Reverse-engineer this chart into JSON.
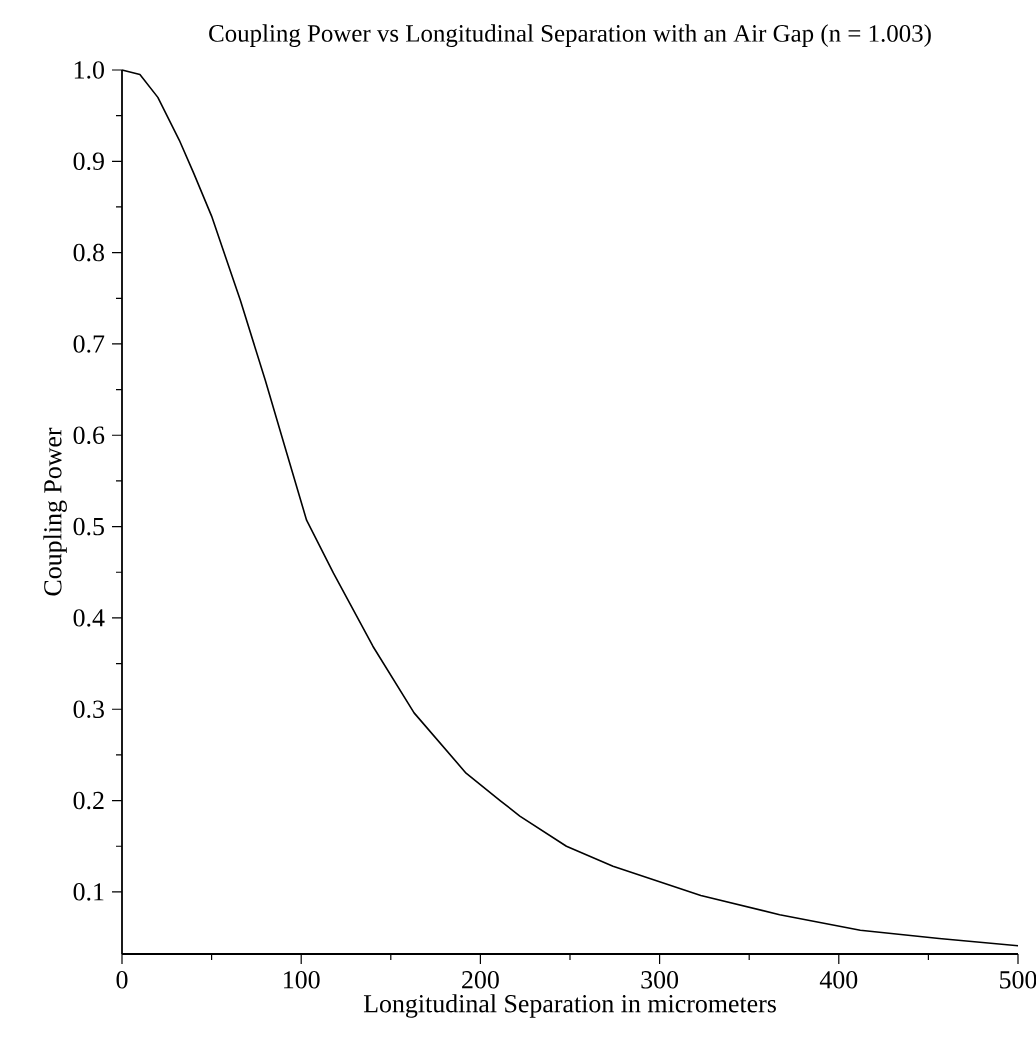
{
  "chart_data": {
    "type": "line",
    "title": "Coupling Power vs Longitudinal Separation with an Air Gap (n = 1.003)",
    "xlabel": "Longitudinal Separation in micrometers",
    "ylabel": "Coupling Power",
    "x": [
      0,
      10,
      20,
      32,
      40,
      50,
      66,
      80,
      92,
      103,
      118,
      140,
      163,
      192,
      211,
      222,
      248,
      274,
      323,
      367,
      412,
      456,
      500
    ],
    "series": [
      {
        "color": "#000000",
        "values": [
          1.0,
          0.995,
          0.97,
          0.923,
          0.887,
          0.84,
          0.748,
          0.66,
          0.58,
          0.507,
          0.449,
          0.369,
          0.296,
          0.23,
          0.2,
          0.183,
          0.15,
          0.128,
          0.096,
          0.075,
          0.058,
          0.049,
          0.041
        ]
      }
    ],
    "xlim": [
      0,
      500
    ],
    "ylim": [
      0.032,
      1.0
    ],
    "xticks": [
      0,
      100,
      200,
      300,
      400,
      500
    ],
    "yticks": [
      0.1,
      0.2,
      0.3,
      0.4,
      0.5,
      0.6,
      0.7,
      0.8,
      0.9,
      {
        "value": 1.0,
        "label": "1.0"
      }
    ],
    "marker": "none",
    "line_style": "solid"
  }
}
